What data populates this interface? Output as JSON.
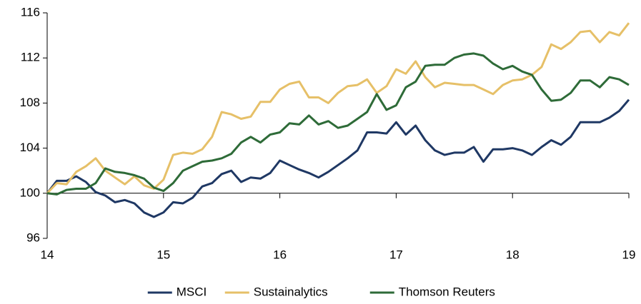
{
  "chart_data": {
    "type": "line",
    "x": [
      14,
      14.083,
      14.167,
      14.25,
      14.333,
      14.417,
      14.5,
      14.583,
      14.667,
      14.75,
      14.833,
      14.917,
      15,
      15.083,
      15.167,
      15.25,
      15.333,
      15.417,
      15.5,
      15.583,
      15.667,
      15.75,
      15.833,
      15.917,
      16,
      16.083,
      16.167,
      16.25,
      16.333,
      16.417,
      16.5,
      16.583,
      16.667,
      16.75,
      16.833,
      16.917,
      17,
      17.083,
      17.167,
      17.25,
      17.333,
      17.417,
      17.5,
      17.583,
      17.667,
      17.75,
      17.833,
      17.917,
      18,
      18.083,
      18.167,
      18.25,
      18.333,
      18.417,
      18.5,
      18.583,
      18.667,
      18.75,
      18.833,
      18.917,
      19
    ],
    "series": [
      {
        "name": "MSCI",
        "color": "#1f3864",
        "values": [
          100,
          101.1,
          101.1,
          101.5,
          101,
          100.1,
          99.8,
          99.2,
          99.4,
          99.1,
          98.3,
          97.9,
          98.3,
          99.2,
          99.1,
          99.6,
          100.6,
          100.9,
          101.7,
          102,
          101,
          101.4,
          101.3,
          101.8,
          102.9,
          102.5,
          102.1,
          101.8,
          101.4,
          101.9,
          102.5,
          103.1,
          103.8,
          105.4,
          105.4,
          105.3,
          106.3,
          105.2,
          106,
          104.7,
          103.8,
          103.4,
          103.6,
          103.6,
          104.1,
          102.8,
          103.9,
          103.9,
          104,
          103.8,
          103.4,
          104.1,
          104.7,
          104.3,
          105,
          106.3,
          106.3,
          106.3,
          106.7,
          107.3,
          108.3
        ]
      },
      {
        "name": "Sustainalytics",
        "color": "#e6c068",
        "values": [
          100,
          100.9,
          100.8,
          101.9,
          102.4,
          103.1,
          102,
          101.4,
          100.8,
          101.5,
          100.7,
          100.4,
          101.2,
          103.4,
          103.6,
          103.5,
          103.9,
          105,
          107.2,
          107,
          106.6,
          106.8,
          108.1,
          108.1,
          109.2,
          109.7,
          109.9,
          108.5,
          108.5,
          108,
          108.9,
          109.5,
          109.6,
          110.1,
          108.9,
          109.5,
          111,
          110.6,
          111.7,
          110.3,
          109.4,
          109.8,
          109.7,
          109.6,
          109.6,
          109.2,
          108.8,
          109.6,
          110,
          110.1,
          110.5,
          111.2,
          113.2,
          112.8,
          113.4,
          114.3,
          114.4,
          113.4,
          114.3,
          114,
          115.1
        ]
      },
      {
        "name": "Thomson Reuters",
        "color": "#2e6b38",
        "values": [
          100,
          99.9,
          100.3,
          100.4,
          100.4,
          100.9,
          102.2,
          101.9,
          101.8,
          101.6,
          101.3,
          100.5,
          100.2,
          100.9,
          102,
          102.4,
          102.8,
          102.9,
          103.1,
          103.5,
          104.5,
          105,
          104.5,
          105.2,
          105.4,
          106.2,
          106.1,
          106.9,
          106.1,
          106.4,
          105.8,
          106,
          106.6,
          107.2,
          108.8,
          107.4,
          107.8,
          109.4,
          109.9,
          111.3,
          111.4,
          111.4,
          112,
          112.3,
          112.4,
          112.2,
          111.5,
          111,
          111.3,
          110.8,
          110.5,
          109.2,
          108.2,
          108.3,
          108.9,
          110,
          110,
          109.4,
          110.3,
          110.1,
          109.6
        ]
      }
    ],
    "xlim": [
      14,
      19
    ],
    "xticks": [
      14,
      15,
      16,
      17,
      18,
      19
    ],
    "ylim": [
      96,
      116
    ],
    "yticks": [
      96,
      100,
      104,
      108,
      112,
      116
    ],
    "x_axis_crossing": 100,
    "grid": false,
    "legend": "bottom"
  }
}
